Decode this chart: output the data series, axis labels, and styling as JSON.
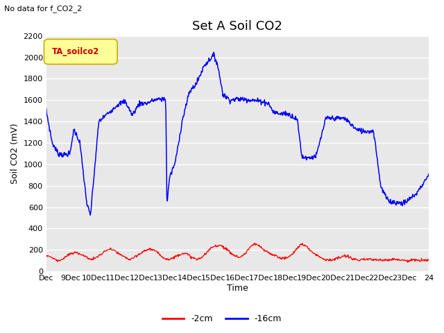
{
  "title": "Set A Soil CO2",
  "no_data_text": "No data for f_CO2_2",
  "legend_label": "TA_soilco2",
  "xlabel": "Time",
  "ylabel": "Soil CO2 (mV)",
  "ylim": [
    0,
    2200
  ],
  "yticks": [
    0,
    200,
    400,
    600,
    800,
    1000,
    1200,
    1400,
    1600,
    1800,
    2000,
    2200
  ],
  "x_start_day": 8,
  "x_end_day": 24,
  "x_tick_days": [
    8,
    9,
    10,
    11,
    12,
    13,
    14,
    15,
    16,
    17,
    18,
    19,
    20,
    21,
    22,
    23,
    24
  ],
  "x_tick_labels": [
    "Dec",
    "9Dec",
    "10Dec",
    "11Dec",
    "12Dec",
    "13Dec",
    "14Dec",
    "15Dec",
    "16Dec",
    "17Dec",
    "18Dec",
    "19Dec",
    "20Dec",
    "21Dec",
    "22Dec",
    "23Dec",
    "24"
  ],
  "line_color_2cm": "#ff0000",
  "line_color_16cm": "#0000ff",
  "legend_line_2cm": "-2cm",
  "legend_line_16cm": "-16cm",
  "plot_bg_color": "#e8e8e8",
  "fig_bg_color": "#ffffff",
  "grid_color": "#ffffff",
  "title_fontsize": 13,
  "label_fontsize": 9,
  "tick_fontsize": 8,
  "legend_box_facecolor": "#ffff99",
  "legend_box_edgecolor": "#ccaa00",
  "legend_text_color": "#cc0000",
  "blue_key_t": [
    8.0,
    8.25,
    8.5,
    8.75,
    9.0,
    9.15,
    9.4,
    9.7,
    9.85,
    10.2,
    10.7,
    11.0,
    11.3,
    11.6,
    11.9,
    12.2,
    12.5,
    12.8,
    13.0,
    13.05,
    13.15,
    13.4,
    13.7,
    14.0,
    14.3,
    14.6,
    15.0,
    15.15,
    15.4,
    15.7,
    16.0,
    16.3,
    16.6,
    17.0,
    17.3,
    17.5,
    17.8,
    18.0,
    18.3,
    18.5,
    18.7,
    19.0,
    19.3,
    19.7,
    20.0,
    20.5,
    21.0,
    21.3,
    21.7,
    22.0,
    22.3,
    22.7,
    23.0,
    23.5,
    24.0
  ],
  "blue_key_v": [
    1500,
    1200,
    1100,
    1090,
    1100,
    1330,
    1210,
    630,
    520,
    1400,
    1500,
    1560,
    1590,
    1460,
    1570,
    1570,
    1600,
    1610,
    1610,
    610,
    870,
    1020,
    1420,
    1680,
    1760,
    1920,
    2020,
    1950,
    1650,
    1600,
    1610,
    1610,
    1600,
    1590,
    1570,
    1490,
    1470,
    1480,
    1450,
    1420,
    1070,
    1060,
    1080,
    1430,
    1430,
    1430,
    1320,
    1310,
    1310,
    790,
    660,
    640,
    640,
    730,
    900
  ],
  "red_key_t": [
    8.0,
    8.15,
    8.3,
    8.5,
    8.7,
    8.9,
    9.1,
    9.3,
    9.5,
    9.7,
    9.9,
    10.1,
    10.3,
    10.5,
    10.7,
    10.9,
    11.1,
    11.3,
    11.5,
    11.7,
    11.9,
    12.1,
    12.3,
    12.5,
    12.7,
    12.9,
    13.1,
    13.3,
    13.5,
    13.7,
    13.9,
    14.1,
    14.3,
    14.5,
    14.7,
    14.9,
    15.1,
    15.3,
    15.5,
    15.7,
    15.9,
    16.1,
    16.3,
    16.5,
    16.7,
    16.9,
    17.1,
    17.3,
    17.5,
    17.7,
    17.9,
    18.1,
    18.3,
    18.5,
    18.7,
    18.9,
    19.1,
    19.3,
    19.5,
    19.7,
    19.9,
    20.1,
    20.3,
    20.5,
    20.7,
    20.9,
    21.1,
    21.3,
    21.5,
    21.7,
    21.9,
    22.1,
    22.3,
    22.5,
    22.7,
    22.9,
    23.1,
    23.3,
    23.5,
    23.7,
    24.0
  ],
  "red_key_v": [
    150,
    140,
    120,
    100,
    115,
    150,
    170,
    175,
    155,
    130,
    110,
    130,
    160,
    195,
    210,
    185,
    155,
    130,
    110,
    130,
    160,
    190,
    210,
    200,
    165,
    130,
    110,
    125,
    150,
    170,
    160,
    130,
    110,
    130,
    170,
    220,
    240,
    245,
    215,
    175,
    145,
    130,
    160,
    220,
    255,
    240,
    200,
    175,
    155,
    135,
    120,
    130,
    160,
    220,
    255,
    230,
    185,
    155,
    130,
    110,
    105,
    115,
    130,
    145,
    130,
    115,
    100,
    110,
    115,
    110,
    105,
    105,
    110,
    115,
    110,
    105,
    100,
    105,
    105,
    100,
    110
  ]
}
